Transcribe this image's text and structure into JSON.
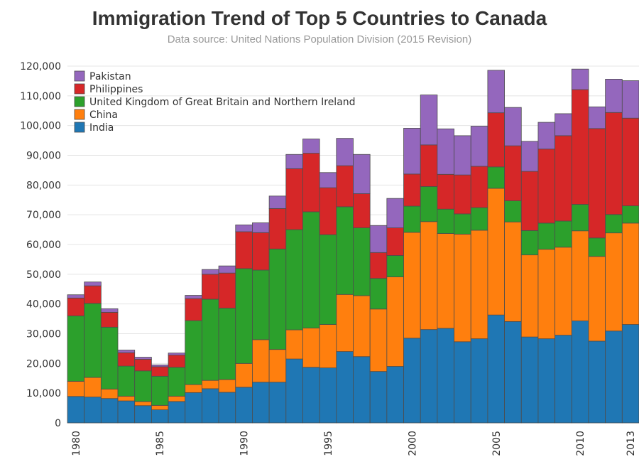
{
  "chart_data": {
    "type": "bar",
    "stacked": true,
    "title": "Immigration Trend of Top 5 Countries to Canada",
    "subtitle": "Data source: United Nations Population Division (2015 Revision)",
    "xlabel": "",
    "ylabel": "",
    "ylim": [
      0,
      120000
    ],
    "yticks": [
      0,
      10000,
      20000,
      30000,
      40000,
      50000,
      60000,
      70000,
      80000,
      90000,
      100000,
      110000,
      120000
    ],
    "ytick_labels": [
      "0",
      "10,000",
      "20,000",
      "30,000",
      "40,000",
      "50,000",
      "60,000",
      "70,000",
      "80,000",
      "90,000",
      "100,000",
      "110,000",
      "120,000"
    ],
    "xtick_labels": [
      "1980",
      "1985",
      "1990",
      "1995",
      "2000",
      "2005",
      "2010",
      "2013"
    ],
    "grid": "horizontal",
    "legend_position": "top-left",
    "categories": [
      "1980",
      "1981",
      "1982",
      "1983",
      "1984",
      "1985",
      "1986",
      "1987",
      "1988",
      "1989",
      "1990",
      "1991",
      "1992",
      "1993",
      "1994",
      "1995",
      "1996",
      "1997",
      "1998",
      "1999",
      "2000",
      "2001",
      "2002",
      "2003",
      "2004",
      "2005",
      "2006",
      "2007",
      "2008",
      "2009",
      "2010",
      "2011",
      "2012",
      "2013"
    ],
    "series": [
      {
        "name": "India",
        "color": "#1f77b4",
        "values": [
          8900,
          8700,
          8200,
          7400,
          5800,
          4400,
          7200,
          10200,
          11500,
          10300,
          12000,
          13700,
          13700,
          21500,
          18700,
          18500,
          24000,
          22300,
          17300,
          19000,
          28500,
          31400,
          31800,
          27300,
          28300,
          36300,
          34100,
          28900,
          28300,
          29500,
          34300,
          27500,
          30900,
          33100
        ]
      },
      {
        "name": "China",
        "color": "#ff7f0e",
        "values": [
          5100,
          6600,
          3200,
          1600,
          1400,
          1500,
          1800,
          2700,
          2800,
          4300,
          8000,
          14300,
          11000,
          9800,
          13200,
          14600,
          19200,
          20500,
          21000,
          30100,
          35600,
          36300,
          31900,
          36200,
          36500,
          42600,
          33500,
          27600,
          30100,
          29600,
          30300,
          28500,
          33000,
          34100
        ]
      },
      {
        "name": "United Kingdom of Great Britain and Northern Ireland",
        "color": "#2ca02c",
        "values": [
          22000,
          24900,
          20800,
          10100,
          10300,
          9800,
          9700,
          21500,
          27300,
          24000,
          31900,
          23400,
          33800,
          33700,
          39100,
          30200,
          29500,
          22800,
          10300,
          7200,
          8800,
          11800,
          8200,
          6800,
          7600,
          7200,
          7100,
          8200,
          8800,
          8800,
          8900,
          6200,
          6200,
          5800
        ]
      },
      {
        "name": "Philippines",
        "color": "#d62728",
        "values": [
          6000,
          5900,
          5000,
          4500,
          3900,
          3200,
          4100,
          7400,
          8400,
          11800,
          12400,
          12600,
          13600,
          20500,
          19700,
          15800,
          13800,
          11500,
          8700,
          9300,
          10800,
          14000,
          11700,
          13100,
          13900,
          18200,
          18500,
          19900,
          24900,
          28700,
          38600,
          36800,
          34300,
          29500
        ]
      },
      {
        "name": "Pakistan",
        "color": "#9467bd",
        "values": [
          1100,
          1300,
          1200,
          900,
          700,
          600,
          700,
          1100,
          1600,
          2400,
          2300,
          3300,
          4200,
          4800,
          4800,
          5100,
          9200,
          13200,
          9100,
          9900,
          15400,
          16800,
          15300,
          13200,
          13500,
          14300,
          12900,
          10100,
          9000,
          7400,
          6900,
          7300,
          11200,
          12600
        ]
      }
    ]
  }
}
